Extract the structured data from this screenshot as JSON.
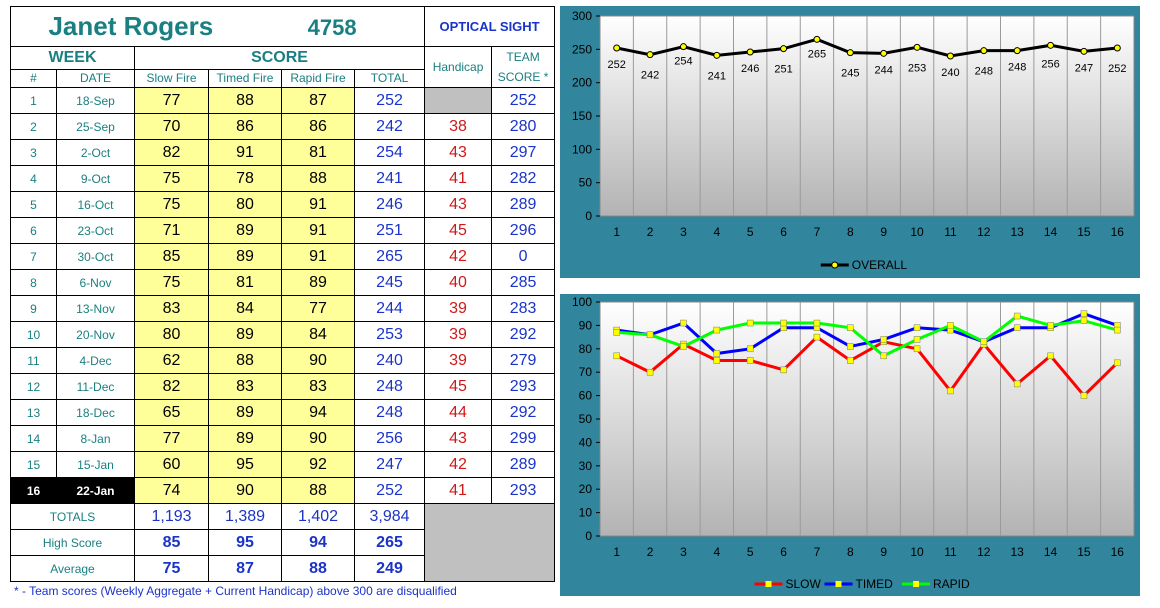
{
  "header": {
    "shooter_name": "Janet Rogers",
    "shooter_id": "4758",
    "category": "OPTICAL SIGHT",
    "week": "WEEK",
    "score": "SCORE",
    "handicap": "Handicap",
    "team": "TEAM",
    "team_score": "SCORE *",
    "num": "#",
    "date": "DATE",
    "slow": "Slow Fire",
    "timed": "Timed Fire",
    "rapid": "Rapid Fire",
    "total": "TOTAL"
  },
  "rows": [
    {
      "n": "1",
      "date": "18-Sep",
      "slow": "77",
      "timed": "88",
      "rapid": "87",
      "total": "252",
      "handicap": "",
      "team": "252"
    },
    {
      "n": "2",
      "date": "25-Sep",
      "slow": "70",
      "timed": "86",
      "rapid": "86",
      "total": "242",
      "handicap": "38",
      "team": "280"
    },
    {
      "n": "3",
      "date": "2-Oct",
      "slow": "82",
      "timed": "91",
      "rapid": "81",
      "total": "254",
      "handicap": "43",
      "team": "297"
    },
    {
      "n": "4",
      "date": "9-Oct",
      "slow": "75",
      "timed": "78",
      "rapid": "88",
      "total": "241",
      "handicap": "41",
      "team": "282"
    },
    {
      "n": "5",
      "date": "16-Oct",
      "slow": "75",
      "timed": "80",
      "rapid": "91",
      "total": "246",
      "handicap": "43",
      "team": "289"
    },
    {
      "n": "6",
      "date": "23-Oct",
      "slow": "71",
      "timed": "89",
      "rapid": "91",
      "total": "251",
      "handicap": "45",
      "team": "296"
    },
    {
      "n": "7",
      "date": "30-Oct",
      "slow": "85",
      "timed": "89",
      "rapid": "91",
      "total": "265",
      "handicap": "42",
      "team": "0"
    },
    {
      "n": "8",
      "date": "6-Nov",
      "slow": "75",
      "timed": "81",
      "rapid": "89",
      "total": "245",
      "handicap": "40",
      "team": "285"
    },
    {
      "n": "9",
      "date": "13-Nov",
      "slow": "83",
      "timed": "84",
      "rapid": "77",
      "total": "244",
      "handicap": "39",
      "team": "283"
    },
    {
      "n": "10",
      "date": "20-Nov",
      "slow": "80",
      "timed": "89",
      "rapid": "84",
      "total": "253",
      "handicap": "39",
      "team": "292"
    },
    {
      "n": "11",
      "date": "4-Dec",
      "slow": "62",
      "timed": "88",
      "rapid": "90",
      "total": "240",
      "handicap": "39",
      "team": "279"
    },
    {
      "n": "12",
      "date": "11-Dec",
      "slow": "82",
      "timed": "83",
      "rapid": "83",
      "total": "248",
      "handicap": "45",
      "team": "293"
    },
    {
      "n": "13",
      "date": "18-Dec",
      "slow": "65",
      "timed": "89",
      "rapid": "94",
      "total": "248",
      "handicap": "44",
      "team": "292"
    },
    {
      "n": "14",
      "date": "8-Jan",
      "slow": "77",
      "timed": "89",
      "rapid": "90",
      "total": "256",
      "handicap": "43",
      "team": "299"
    },
    {
      "n": "15",
      "date": "15-Jan",
      "slow": "60",
      "timed": "95",
      "rapid": "92",
      "total": "247",
      "handicap": "42",
      "team": "289"
    },
    {
      "n": "16",
      "date": "22-Jan",
      "slow": "74",
      "timed": "90",
      "rapid": "88",
      "total": "252",
      "handicap": "41",
      "team": "293"
    }
  ],
  "summary": [
    {
      "label": "TOTALS",
      "slow": "1,193",
      "timed": "1,389",
      "rapid": "1,402",
      "total": "3,984"
    },
    {
      "label": "High Score",
      "slow": "85",
      "timed": "95",
      "rapid": "94",
      "total": "265"
    },
    {
      "label": "Average",
      "slow": "75",
      "timed": "87",
      "rapid": "88",
      "total": "249"
    }
  ],
  "footnote": "* - Team scores (Weekly Aggregate + Current Handicap) above 300 are disqualified",
  "colors": {
    "teal": "#1a7f80",
    "blue": "#1a33c9",
    "red": "#d01818",
    "yellow": "#ffff99",
    "panel": "#31859c",
    "slow_line": "#ff0000",
    "timed_line": "#0000ff",
    "rapid_line": "#00ff00",
    "overall_line": "#000000",
    "marker": "#ffff00"
  },
  "chart_data": [
    {
      "type": "line",
      "x": [
        1,
        2,
        3,
        4,
        5,
        6,
        7,
        8,
        9,
        10,
        11,
        12,
        13,
        14,
        15,
        16
      ],
      "ylim": [
        0,
        300
      ],
      "yticks": [
        0,
        50,
        100,
        150,
        200,
        250,
        300
      ],
      "series": [
        {
          "name": "OVERALL",
          "values": [
            252,
            242,
            254,
            241,
            246,
            251,
            265,
            245,
            244,
            253,
            240,
            248,
            248,
            256,
            247,
            252
          ]
        }
      ],
      "data_labels": true,
      "legend": "bottom",
      "grid": false
    },
    {
      "type": "line",
      "x": [
        1,
        2,
        3,
        4,
        5,
        6,
        7,
        8,
        9,
        10,
        11,
        12,
        13,
        14,
        15,
        16
      ],
      "ylim": [
        0,
        100
      ],
      "yticks": [
        0,
        10,
        20,
        30,
        40,
        50,
        60,
        70,
        80,
        90,
        100
      ],
      "series": [
        {
          "name": "SLOW",
          "values": [
            77,
            70,
            82,
            75,
            75,
            71,
            85,
            75,
            83,
            80,
            62,
            82,
            65,
            77,
            60,
            74
          ]
        },
        {
          "name": "TIMED",
          "values": [
            88,
            86,
            91,
            78,
            80,
            89,
            89,
            81,
            84,
            89,
            88,
            83,
            89,
            89,
            95,
            90
          ]
        },
        {
          "name": "RAPID",
          "values": [
            87,
            86,
            81,
            88,
            91,
            91,
            91,
            89,
            77,
            84,
            90,
            83,
            94,
            90,
            92,
            88
          ]
        }
      ],
      "legend": "bottom",
      "grid": false
    }
  ]
}
